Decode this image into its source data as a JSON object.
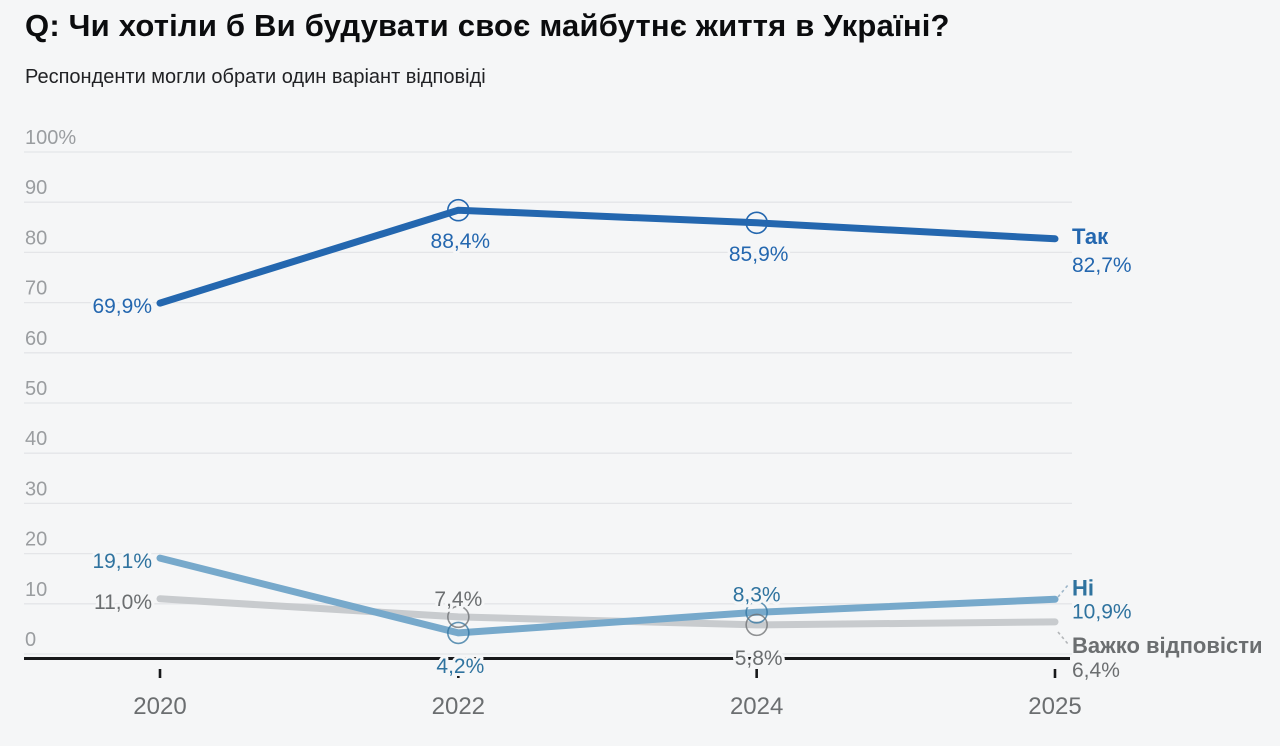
{
  "page": {
    "title": "Q: Чи хотіли б Ви будувати своє майбутнє життя в Україні?",
    "subtitle": "Респонденти могли обрати один варіант відповіді"
  },
  "colors": {
    "background": "#f5f6f7",
    "grid": "#e4e5e8",
    "axis": "#17181a",
    "y_tick_text": "#9a9da0",
    "x_tick_text": "#6b6e70"
  },
  "chart_data": {
    "type": "line",
    "title": "Q: Чи хотіли б Ви будувати своє майбутнє життя в Україні?",
    "subtitle": "Респонденти могли обрати один варіант відповіді",
    "categories": [
      "2020",
      "2022",
      "2024",
      "2025"
    ],
    "xlabel": "",
    "ylabel": "",
    "y_axis": {
      "range": [
        0,
        100
      ],
      "ticks": [
        0,
        10,
        20,
        30,
        40,
        50,
        60,
        70,
        80,
        90,
        100
      ],
      "tick_labels": [
        "0",
        "10",
        "20",
        "30",
        "40",
        "50",
        "60",
        "70",
        "80",
        "90",
        "100%"
      ],
      "grid": true
    },
    "legend_position": "end-of-line-labels",
    "series": [
      {
        "name": "Так",
        "values": [
          69.9,
          88.4,
          85.9,
          82.7
        ],
        "labels": [
          "69,9%",
          "88,4%",
          "85,9%",
          "82,7%"
        ],
        "color": "#2467af",
        "label_color": "#2467af",
        "marker_indices": [
          1,
          2
        ],
        "label_placement": [
          "left",
          "below",
          "below",
          "end"
        ]
      },
      {
        "name": "Ні",
        "values": [
          19.1,
          4.2,
          8.3,
          10.9
        ],
        "labels": [
          "19,1%",
          "4,2%",
          "8,3%",
          "10,9%"
        ],
        "color": "#77a9cb",
        "label_color": "#2f739f",
        "marker_indices": [
          1,
          2
        ],
        "label_placement": [
          "left",
          "below-axis",
          "above",
          "end"
        ]
      },
      {
        "name": "Важко відповісти",
        "values": [
          11.0,
          7.4,
          5.8,
          6.4
        ],
        "labels": [
          "11,0%",
          "7,4%",
          "5,8%",
          "6,4%"
        ],
        "color": "#c8cbce",
        "label_color": "#6b6e70",
        "marker_indices": [
          1,
          2
        ],
        "label_placement": [
          "left",
          "above",
          "below-axis",
          "end"
        ]
      }
    ]
  }
}
